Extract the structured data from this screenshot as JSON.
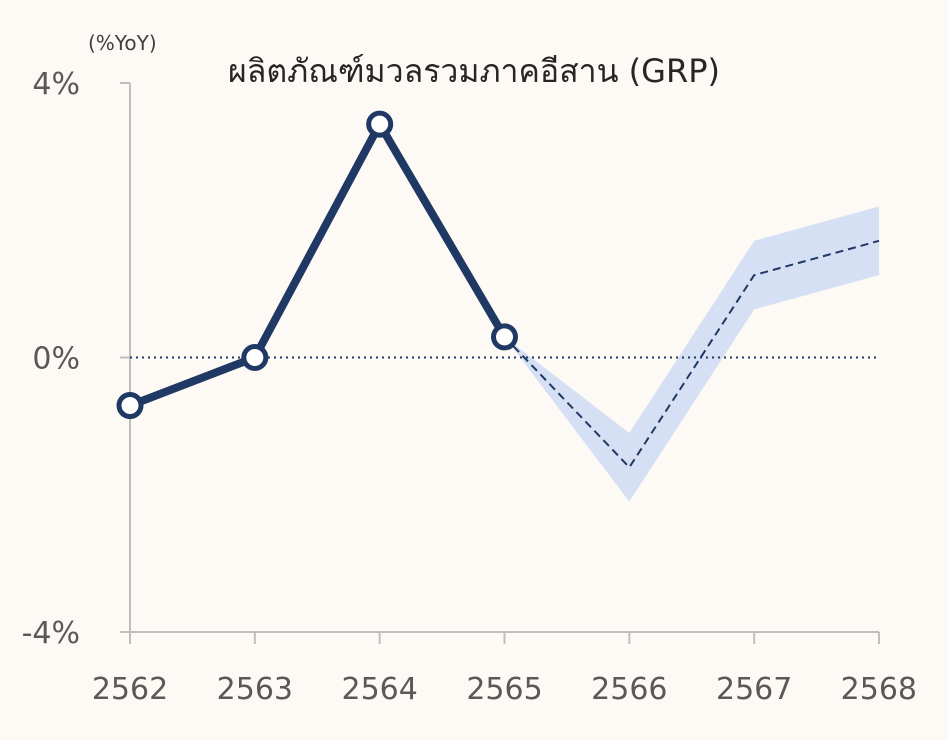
{
  "chart_data": {
    "type": "line",
    "title": "ผลิตภัณฑ์มวลรวมภาคอีสาน (GRP)",
    "unit": "(%YoY)",
    "categories": [
      "2562",
      "2563",
      "2564",
      "2565",
      "2566",
      "2567",
      "2568"
    ],
    "ylim": [
      -4,
      4
    ],
    "y_ticks": [
      {
        "value": 4,
        "label": "4%"
      },
      {
        "value": 0,
        "label": "0%"
      },
      {
        "value": -4,
        "label": "-4%"
      }
    ],
    "series": [
      {
        "style": "actual",
        "x": [
          "2562",
          "2563",
          "2564",
          "2565"
        ],
        "values": [
          -0.7,
          0.0,
          3.4,
          0.3
        ],
        "color": "#1f3864"
      },
      {
        "style": "forecast",
        "x": [
          "2565",
          "2566",
          "2567",
          "2568"
        ],
        "values": [
          0.3,
          -1.6,
          1.2,
          1.7
        ],
        "color": "#1f3864",
        "band_upper": [
          0.3,
          -1.1,
          1.7,
          2.2
        ],
        "band_lower": [
          0.3,
          -2.1,
          0.7,
          1.2
        ],
        "band_color": "#d6e0f4"
      }
    ],
    "zero_line": true,
    "grid": false
  }
}
